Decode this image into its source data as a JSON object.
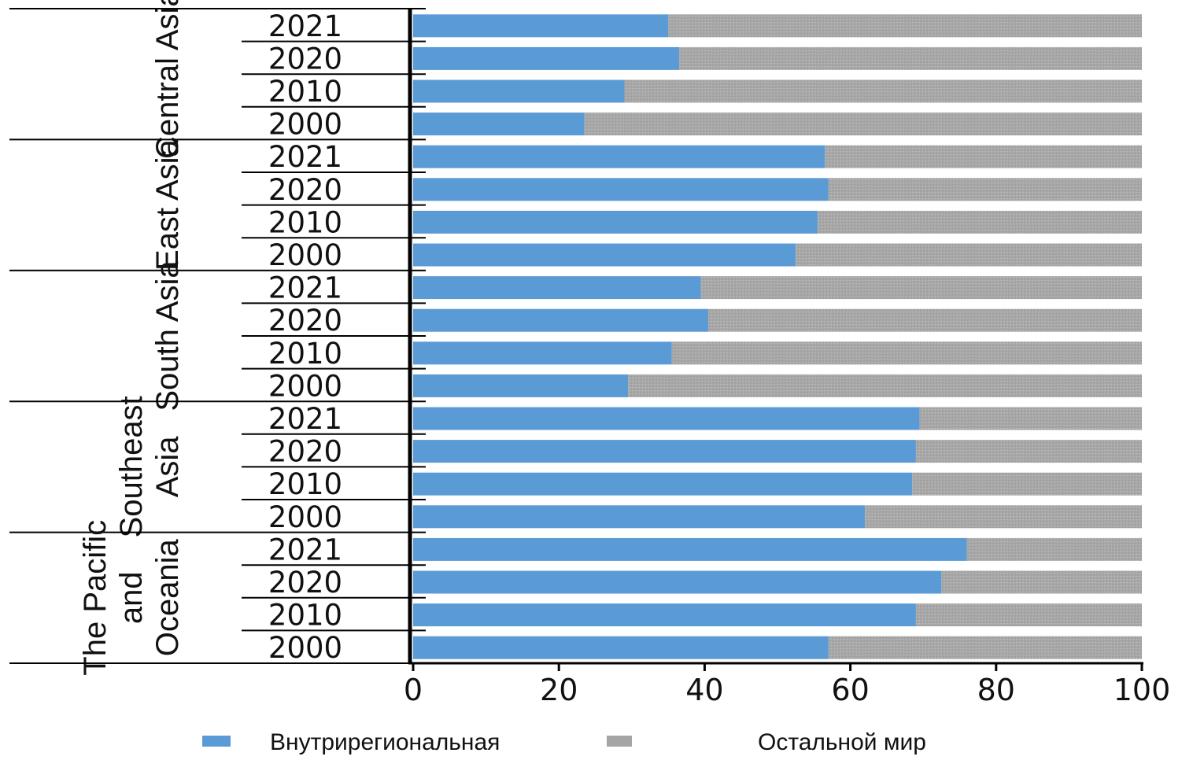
{
  "chart_data": {
    "type": "bar",
    "orientation": "horizontal",
    "stacked": true,
    "xlim": [
      0,
      100
    ],
    "xticks": [
      0,
      20,
      40,
      60,
      80,
      100
    ],
    "grid": false,
    "legend_position": "bottom",
    "groups": [
      {
        "name_lines": [
          "Central Asia"
        ],
        "categories": [
          "2021",
          "2020",
          "2010",
          "2000"
        ],
        "values": [
          35,
          36.5,
          29,
          23.5
        ]
      },
      {
        "name_lines": [
          "East Asia"
        ],
        "categories": [
          "2021",
          "2020",
          "2010",
          "2000"
        ],
        "values": [
          56.5,
          57,
          55.5,
          52.5
        ]
      },
      {
        "name_lines": [
          "South Asia"
        ],
        "categories": [
          "2021",
          "2020",
          "2010",
          "2000"
        ],
        "values": [
          39.5,
          40.5,
          35.5,
          29.5
        ]
      },
      {
        "name_lines": [
          "Southeast",
          "Asia"
        ],
        "categories": [
          "2021",
          "2020",
          "2010",
          "2000"
        ],
        "values": [
          69.5,
          69,
          68.5,
          62
        ]
      },
      {
        "name_lines": [
          "The Pacific",
          "and",
          "Oceania"
        ],
        "categories": [
          "2021",
          "2020",
          "2010",
          "2000"
        ],
        "values": [
          76,
          72.5,
          69,
          57
        ]
      }
    ],
    "series": [
      {
        "name": "Внутрирегиональная",
        "color": "#5b9bd5"
      },
      {
        "name": "Остальной мир",
        "color": "#a5a5a5"
      }
    ]
  }
}
